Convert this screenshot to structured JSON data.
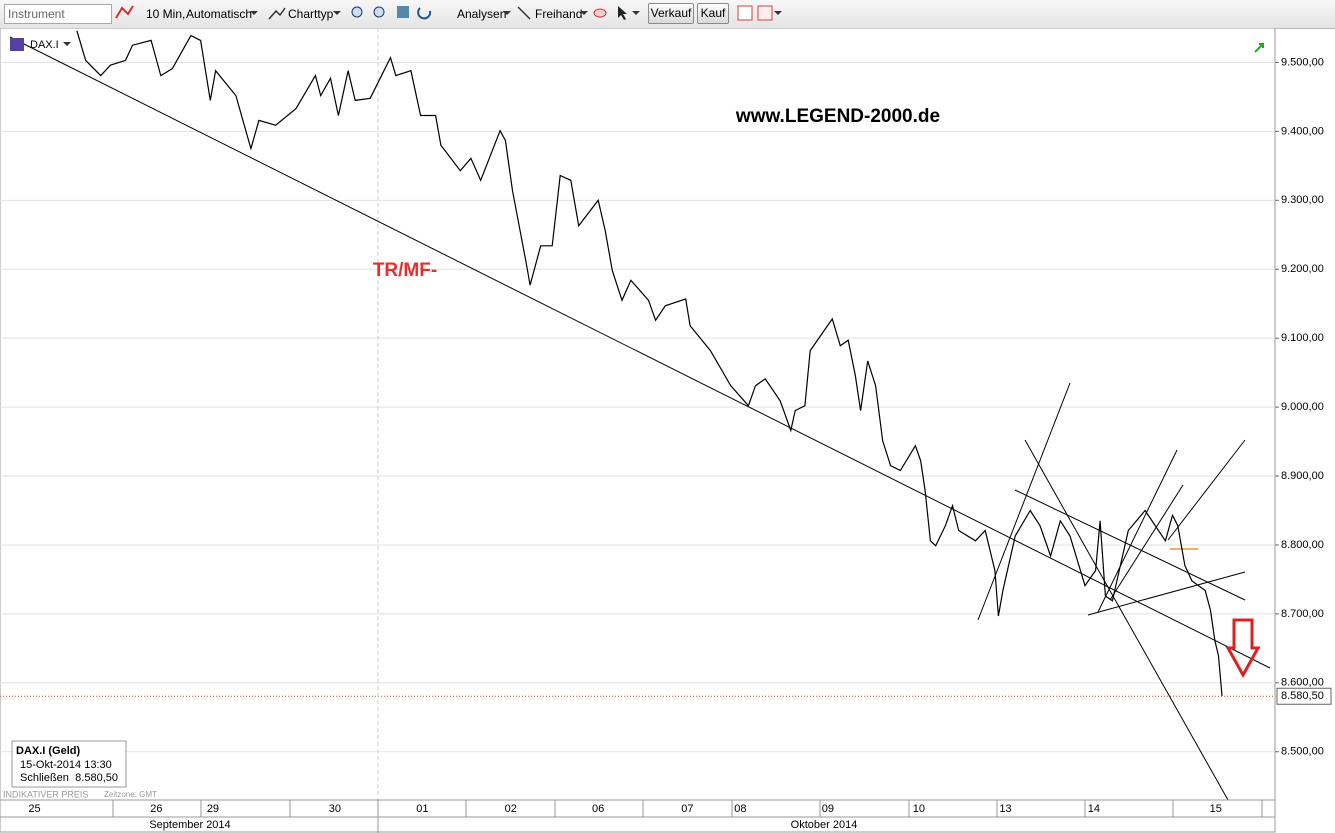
{
  "toolbar": {
    "instrument": "Instrument",
    "interval": "10 Min,",
    "mode": "Automatisch",
    "chart_type": "Charttyp",
    "analyses": "Analysen",
    "freehand": "Freihand",
    "sell": "Verkauf",
    "buy": "Kauf"
  },
  "instrument_label": "DAX.I",
  "info_box": {
    "title": "DAX.I (Geld)",
    "time": "15-Okt-2014 13:30",
    "close_label": "Schließen",
    "close": "8.580,50"
  },
  "footer": {
    "price_note": "INDIKATIVER PREIS",
    "timezone": "Zeitzone: GMT"
  },
  "chart_data": {
    "type": "line",
    "annotations": [
      "www.LEGEND-2000.de",
      "TR/MF-"
    ],
    "months": [
      "September 2014",
      "Oktober 2014"
    ],
    "xlim": [
      -0.28,
      14.15
    ],
    "xticks": [
      {
        "value": 0.11,
        "label": "25"
      },
      {
        "value": 1.49,
        "label": "26"
      },
      {
        "value": 2.13,
        "label": "29"
      },
      {
        "value": 3.51,
        "label": "30"
      },
      {
        "value": 4.5,
        "label": "01"
      },
      {
        "value": 5.5,
        "label": "02"
      },
      {
        "value": 6.49,
        "label": "06"
      },
      {
        "value": 7.5,
        "label": "07"
      },
      {
        "value": 8.1,
        "label": "08"
      },
      {
        "value": 9.09,
        "label": "09"
      },
      {
        "value": 10.12,
        "label": "10"
      },
      {
        "value": 11.1,
        "label": "13"
      },
      {
        "value": 12.1,
        "label": "14"
      },
      {
        "value": 13.48,
        "label": "15"
      }
    ],
    "ylim": [
      8430,
      9550
    ],
    "yticks": [
      {
        "value": 8500,
        "label": "8.500,00"
      },
      {
        "value": 8600,
        "label": "8.600,00"
      },
      {
        "value": 8700,
        "label": "8.700,00"
      },
      {
        "value": 8800,
        "label": "8.800,00"
      },
      {
        "value": 8900,
        "label": "8.900,00"
      },
      {
        "value": 9000,
        "label": "9.000,00"
      },
      {
        "value": 9100,
        "label": "9.100,00"
      },
      {
        "value": 9200,
        "label": "9.200,00"
      },
      {
        "value": 9300,
        "label": "9.300,00"
      },
      {
        "value": 9400,
        "label": "9.400,00"
      },
      {
        "value": 9500,
        "label": "9.500,00"
      }
    ],
    "grid": true,
    "last_price": {
      "value": 8580.5,
      "label": "8.580,50"
    },
    "series": [
      {
        "name": "DAX.I",
        "color": "#000000",
        "x": [
          0.59,
          0.69,
          0.86,
          0.97,
          1.14,
          1.22,
          1.43,
          1.54,
          1.67,
          1.88,
          1.99,
          2.1,
          2.16,
          2.39,
          2.56,
          2.65,
          2.84,
          3.07,
          3.29,
          3.35,
          3.46,
          3.55,
          3.66,
          3.74,
          3.91,
          4.14,
          4.2,
          4.37,
          4.48,
          4.65,
          4.71,
          4.93,
          5.05,
          5.16,
          5.38,
          5.44,
          5.52,
          5.67,
          5.72,
          5.84,
          5.97,
          6.06,
          6.18,
          6.27,
          6.49,
          6.57,
          6.65,
          6.76,
          6.86,
          7.06,
          7.14,
          7.25,
          7.48,
          7.53,
          7.76,
          7.99,
          8.19,
          8.27,
          8.38,
          8.55,
          8.67,
          8.72,
          8.83,
          8.89,
          9.14,
          9.23,
          9.32,
          9.4,
          9.46,
          9.54,
          9.63,
          9.71,
          9.8,
          9.91,
          10.08,
          10.14,
          10.19,
          10.25,
          10.31,
          10.42,
          10.5,
          10.57,
          10.76,
          10.87,
          10.98,
          11.02,
          11.07,
          11.21,
          11.38,
          11.49,
          11.61,
          11.72,
          11.83,
          12.0,
          12.12,
          12.17,
          12.23,
          12.31,
          12.49,
          12.68,
          12.91,
          12.99,
          13.05,
          13.13,
          13.21,
          13.36,
          13.42,
          13.47,
          13.51,
          13.55
        ],
        "values": [
          9546,
          9503,
          9481,
          9496,
          9503,
          9525,
          9532,
          9481,
          9491,
          9539,
          9532,
          9445,
          9488,
          9452,
          9375,
          9416,
          9409,
          9433,
          9481,
          9452,
          9477,
          9423,
          9488,
          9445,
          9448,
          9507,
          9481,
          9488,
          9423,
          9423,
          9380,
          9343,
          9361,
          9329,
          9401,
          9387,
          9314,
          9213,
          9177,
          9234,
          9234,
          9336,
          9329,
          9263,
          9300,
          9256,
          9198,
          9155,
          9184,
          9155,
          9126,
          9147,
          9157,
          9118,
          9082,
          9031,
          9002,
          9031,
          9041,
          9009,
          8966,
          8995,
          9002,
          9082,
          9128,
          9089,
          9097,
          9046,
          8995,
          9067,
          9031,
          8951,
          8915,
          8908,
          8944,
          8922,
          8879,
          8806,
          8799,
          8828,
          8857,
          8821,
          8806,
          8821,
          8763,
          8697,
          8734,
          8813,
          8850,
          8828,
          8784,
          8835,
          8813,
          8741,
          8763,
          8835,
          8726,
          8719,
          8821,
          8850,
          8806,
          8843,
          8828,
          8770,
          8748,
          8734,
          8705,
          8661,
          8639,
          8581
        ]
      }
    ]
  }
}
